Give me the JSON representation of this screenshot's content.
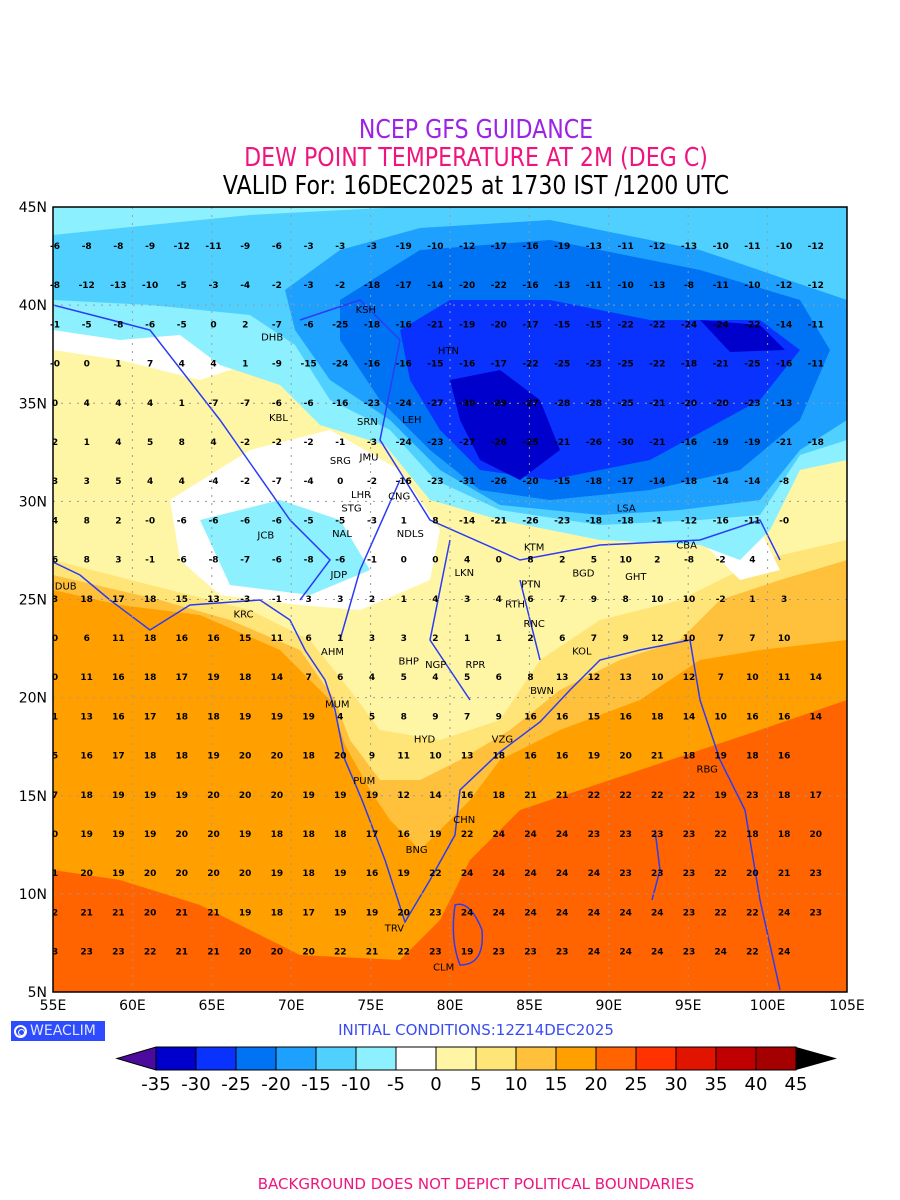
{
  "header": {
    "line1": "NCEP GFS GUIDANCE",
    "line2": "DEW POINT TEMPERATURE AT 2M (DEG C)",
    "line3": "VALID For: 16DEC2025 at 1730 IST /1200 UTC"
  },
  "axes": {
    "lat_labels": [
      "45N",
      "40N",
      "35N",
      "30N",
      "25N",
      "20N",
      "15N",
      "10N",
      "5N"
    ],
    "lon_labels": [
      "55E",
      "60E",
      "65E",
      "70E",
      "75E",
      "80E",
      "85E",
      "90E",
      "95E",
      "100E",
      "105E"
    ]
  },
  "cities": [
    {
      "name": "KSH",
      "lon": 74.7,
      "lat": 39.8
    },
    {
      "name": "DHB",
      "lon": 68.8,
      "lat": 38.6
    },
    {
      "name": "HTN",
      "lon": 79.9,
      "lat": 37.1
    },
    {
      "name": "KBL",
      "lon": 69.2,
      "lat": 34.5
    },
    {
      "name": "SRN",
      "lon": 74.8,
      "lat": 34.1
    },
    {
      "name": "LEH",
      "lon": 77.6,
      "lat": 34.2
    },
    {
      "name": "JMU",
      "lon": 74.9,
      "lat": 32.7
    },
    {
      "name": "SRG",
      "lon": 73.1,
      "lat": 32.1
    },
    {
      "name": "LHR",
      "lon": 74.4,
      "lat": 31.6
    },
    {
      "name": "CNG",
      "lon": 76.8,
      "lat": 30.7
    },
    {
      "name": "STG",
      "lon": 73.8,
      "lat": 29.7
    },
    {
      "name": "NAL",
      "lon": 73.2,
      "lat": 28.4
    },
    {
      "name": "JCB",
      "lon": 68.4,
      "lat": 28.3
    },
    {
      "name": "NDLS",
      "lon": 77.5,
      "lat": 28.6
    },
    {
      "name": "LSA",
      "lon": 91.1,
      "lat": 29.7
    },
    {
      "name": "KTM",
      "lon": 85.3,
      "lat": 27.7
    },
    {
      "name": "LKN",
      "lon": 80.9,
      "lat": 26.8
    },
    {
      "name": "JDP",
      "lon": 73.0,
      "lat": 26.3
    },
    {
      "name": "BGD",
      "lon": 88.4,
      "lat": 27.0
    },
    {
      "name": "CBA",
      "lon": 94.9,
      "lat": 27.8
    },
    {
      "name": "GHT",
      "lon": 91.7,
      "lat": 26.2
    },
    {
      "name": "PTN",
      "lon": 85.1,
      "lat": 25.6
    },
    {
      "name": "DUB",
      "lon": 55.8,
      "lat": 25.3
    },
    {
      "name": "KRC",
      "lon": 67.0,
      "lat": 24.7
    },
    {
      "name": "RTH",
      "lon": 84.1,
      "lat": 24.8
    },
    {
      "name": "RNC",
      "lon": 85.3,
      "lat": 23.4
    },
    {
      "name": "KOL",
      "lon": 88.3,
      "lat": 22.4
    },
    {
      "name": "AHM",
      "lon": 72.6,
      "lat": 23.0
    },
    {
      "name": "BHP",
      "lon": 77.4,
      "lat": 21.9
    },
    {
      "name": "NGP",
      "lon": 79.1,
      "lat": 21.1
    },
    {
      "name": "RPR",
      "lon": 81.6,
      "lat": 21.3
    },
    {
      "name": "BWN",
      "lon": 85.8,
      "lat": 20.4
    },
    {
      "name": "MUM",
      "lon": 72.9,
      "lat": 19.1
    },
    {
      "name": "HYD",
      "lon": 78.4,
      "lat": 17.3
    },
    {
      "name": "VZG",
      "lon": 83.3,
      "lat": 17.5
    },
    {
      "name": "PUM",
      "lon": 74.6,
      "lat": 15.6
    },
    {
      "name": "CHN",
      "lon": 80.9,
      "lat": 13.2
    },
    {
      "name": "BNG",
      "lon": 77.9,
      "lat": 12.7
    },
    {
      "name": "RBG",
      "lon": 96.2,
      "lat": 16.8
    },
    {
      "name": "TRV",
      "lon": 76.5,
      "lat": 8.5
    },
    {
      "name": "CLM",
      "lon": 79.6,
      "lat": 6.7
    }
  ],
  "grid_values": [
    [
      "-6",
      "-8",
      "-8",
      "-9",
      "-12",
      "-11",
      "-9",
      "-6",
      "-3",
      "-3",
      "-3",
      "-19",
      "-10",
      "-12",
      "-17",
      "-16",
      "-19",
      "-13",
      "-11",
      "-12",
      "-13",
      "-10",
      "-11",
      "-10",
      "-12"
    ],
    [
      "-8",
      "-12",
      "-13",
      "-10",
      "-5",
      "-3",
      "-4",
      "-2",
      "-3",
      "-2",
      "-18",
      "-17",
      "-14",
      "-20",
      "-22",
      "-16",
      "-13",
      "-11",
      "-10",
      "-13",
      "-8",
      "-11",
      "-10",
      "-12",
      "-12"
    ],
    [
      "-1",
      "-5",
      "-8",
      "-6",
      "-5",
      "0",
      "2",
      "-7",
      "-6",
      "-25",
      "-18",
      "-16",
      "-21",
      "-19",
      "-20",
      "-17",
      "-15",
      "-15",
      "-22",
      "-22",
      "-24",
      "-24",
      "-22",
      "-14",
      "-11"
    ],
    [
      "-0",
      "0",
      "1",
      "7",
      "4",
      "4",
      "1",
      "-9",
      "-15",
      "-24",
      "-16",
      "-16",
      "-15",
      "-16",
      "-17",
      "-22",
      "-25",
      "-23",
      "-25",
      "-22",
      "-18",
      "-21",
      "-25",
      "-16",
      "-11"
    ],
    [
      "0",
      "4",
      "4",
      "4",
      "1",
      "-7",
      "-7",
      "-6",
      "-6",
      "-16",
      "-23",
      "-24",
      "-27",
      "-30",
      "-29",
      "-27",
      "-28",
      "-28",
      "-25",
      "-21",
      "-20",
      "-20",
      "-23",
      "-13"
    ],
    [
      "2",
      "1",
      "4",
      "5",
      "8",
      "4",
      "-2",
      "-2",
      "-2",
      "-1",
      "-3",
      "-24",
      "-23",
      "-27",
      "-26",
      "-25",
      "-21",
      "-26",
      "-30",
      "-21",
      "-16",
      "-19",
      "-19",
      "-21",
      "-18"
    ],
    [
      "3",
      "3",
      "5",
      "4",
      "4",
      "-4",
      "-2",
      "-7",
      "-4",
      "0",
      "-2",
      "-16",
      "-23",
      "-31",
      "-26",
      "-20",
      "-15",
      "-18",
      "-17",
      "-14",
      "-18",
      "-14",
      "-14",
      "-8"
    ],
    [
      "4",
      "8",
      "2",
      "-0",
      "-6",
      "-6",
      "-6",
      "-6",
      "-5",
      "-5",
      "-3",
      "1",
      "8",
      "-14",
      "-21",
      "-26",
      "-23",
      "-18",
      "-18",
      "-1",
      "-12",
      "-16",
      "-11",
      "-0"
    ],
    [
      "6",
      "8",
      "3",
      "-1",
      "-6",
      "-8",
      "-7",
      "-6",
      "-8",
      "-6",
      "-1",
      "0",
      "0",
      "4",
      "0",
      "8",
      "2",
      "5",
      "10",
      "2",
      "-8",
      "-2",
      "4"
    ],
    [
      "3",
      "18",
      "17",
      "18",
      "15",
      "13",
      "-3",
      "-1",
      "3",
      "3",
      "2",
      "1",
      "4",
      "3",
      "4",
      "6",
      "7",
      "9",
      "8",
      "10",
      "10",
      "-2",
      "1",
      "3"
    ],
    [
      "0",
      "6",
      "11",
      "18",
      "16",
      "16",
      "15",
      "11",
      "6",
      "1",
      "3",
      "3",
      "2",
      "1",
      "1",
      "2",
      "6",
      "7",
      "9",
      "12",
      "10",
      "7",
      "7",
      "10"
    ],
    [
      "0",
      "11",
      "16",
      "18",
      "17",
      "19",
      "18",
      "14",
      "7",
      "6",
      "4",
      "5",
      "4",
      "5",
      "6",
      "8",
      "13",
      "12",
      "13",
      "10",
      "12",
      "7",
      "10",
      "11",
      "14"
    ],
    [
      "1",
      "13",
      "16",
      "17",
      "18",
      "18",
      "19",
      "19",
      "19",
      "4",
      "5",
      "8",
      "9",
      "7",
      "9",
      "16",
      "16",
      "15",
      "16",
      "18",
      "14",
      "10",
      "16",
      "16",
      "14"
    ],
    [
      "5",
      "16",
      "17",
      "18",
      "18",
      "19",
      "20",
      "20",
      "18",
      "20",
      "9",
      "11",
      "10",
      "13",
      "18",
      "16",
      "16",
      "19",
      "20",
      "21",
      "18",
      "19",
      "18",
      "16"
    ],
    [
      "7",
      "18",
      "19",
      "19",
      "19",
      "20",
      "20",
      "20",
      "19",
      "19",
      "19",
      "12",
      "14",
      "16",
      "18",
      "21",
      "21",
      "22",
      "22",
      "22",
      "22",
      "19",
      "23",
      "18",
      "17"
    ],
    [
      "0",
      "19",
      "19",
      "19",
      "20",
      "20",
      "19",
      "18",
      "18",
      "18",
      "17",
      "16",
      "19",
      "22",
      "24",
      "24",
      "24",
      "23",
      "23",
      "23",
      "23",
      "22",
      "18",
      "18",
      "20"
    ],
    [
      "1",
      "20",
      "19",
      "20",
      "20",
      "20",
      "20",
      "19",
      "18",
      "19",
      "16",
      "19",
      "22",
      "24",
      "24",
      "24",
      "24",
      "24",
      "23",
      "23",
      "23",
      "22",
      "20",
      "21",
      "23"
    ],
    [
      "2",
      "21",
      "21",
      "20",
      "21",
      "21",
      "19",
      "18",
      "17",
      "19",
      "19",
      "20",
      "23",
      "24",
      "24",
      "24",
      "24",
      "24",
      "24",
      "24",
      "23",
      "22",
      "22",
      "24",
      "23"
    ],
    [
      "3",
      "23",
      "23",
      "22",
      "21",
      "21",
      "20",
      "20",
      "20",
      "22",
      "21",
      "22",
      "23",
      "19",
      "23",
      "23",
      "23",
      "24",
      "24",
      "24",
      "23",
      "24",
      "22",
      "24"
    ]
  ],
  "colorbar": {
    "labels": [
      "-35",
      "-30",
      "-25",
      "-20",
      "-15",
      "-10",
      "-5",
      "0",
      "5",
      "10",
      "15",
      "20",
      "25",
      "30",
      "35",
      "40",
      "45"
    ],
    "colors": [
      "#4b0c9e",
      "#0000cd",
      "#0a32ff",
      "#0073f5",
      "#1ea0ff",
      "#50d0ff",
      "#8cf0ff",
      "#ffffff",
      "#fff6a5",
      "#ffe578",
      "#ffc03c",
      "#ffa000",
      "#ff6400",
      "#ff3200",
      "#e11400",
      "#c00000",
      "#a50000",
      "#000000"
    ]
  },
  "logo": "WEACLIM",
  "initial_conditions": "INITIAL CONDITIONS:12Z14DEC2025",
  "footer": "BACKGROUND DOES NOT DEPICT POLITICAL BOUNDARIES"
}
